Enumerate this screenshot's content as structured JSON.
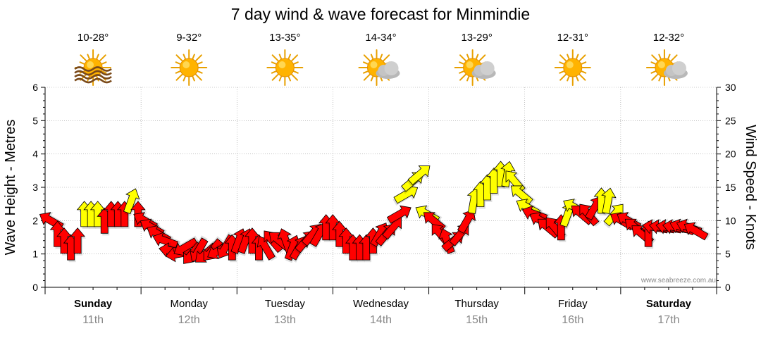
{
  "chart_data": {
    "type": "line",
    "title": "7 day wind & wave forecast for Minmindie",
    "ylabel_left": "Wave Height - Metres",
    "ylabel_right": "Wind Speed - Knots",
    "ylim_left": [
      0,
      6
    ],
    "ylim_right": [
      0,
      30
    ],
    "yticks_left": [
      "0",
      "1",
      "2",
      "3",
      "4",
      "5",
      "6"
    ],
    "yticks_right": [
      "0",
      "5",
      "10",
      "15",
      "20",
      "25",
      "30"
    ],
    "grid": true,
    "watermark": "www.seabreeze.com.au",
    "days": [
      {
        "name": "Sunday",
        "date": "11th",
        "temp": "10-28°",
        "icon": "sun-haze-icon",
        "bold": true
      },
      {
        "name": "Monday",
        "date": "12th",
        "temp": "9-32°",
        "icon": "sun-icon",
        "bold": false
      },
      {
        "name": "Tuesday",
        "date": "13th",
        "temp": "13-35°",
        "icon": "sun-icon",
        "bold": false
      },
      {
        "name": "Wednesday",
        "date": "14th",
        "temp": "14-34°",
        "icon": "sun-cloud-icon",
        "bold": false
      },
      {
        "name": "Thursday",
        "date": "15th",
        "temp": "13-29°",
        "icon": "sun-cloud-icon",
        "bold": false
      },
      {
        "name": "Friday",
        "date": "16th",
        "temp": "12-31°",
        "icon": "sun-icon",
        "bold": false
      },
      {
        "name": "Saturday",
        "date": "17th",
        "temp": "12-32°",
        "icon": "sun-cloud-icon",
        "bold": true
      }
    ],
    "colors": {
      "strong": "#ff0000",
      "moderate": "#ffff00",
      "outline": "#000000",
      "grid": "#999999"
    },
    "series": [
      {
        "name": "wind",
        "x_days": [
          0.0,
          0.07,
          0.14,
          0.21,
          0.28,
          0.35,
          0.42,
          0.49,
          0.56,
          0.63,
          0.7,
          0.77,
          0.84,
          0.91,
          0.98,
          1.05,
          1.12,
          1.19,
          1.26,
          1.33,
          1.4,
          1.47,
          1.54,
          1.61,
          1.68,
          1.75,
          1.82,
          1.89,
          1.96,
          2.03,
          2.1,
          2.17,
          2.24,
          2.31,
          2.38,
          2.45,
          2.52,
          2.59,
          2.66,
          2.73,
          2.8,
          2.87,
          2.94,
          3.01,
          3.08,
          3.15,
          3.22,
          3.29,
          3.36,
          3.43,
          3.5,
          3.57,
          3.64,
          3.71,
          3.78,
          3.85,
          3.92,
          3.99,
          4.06,
          4.13,
          4.2,
          4.27,
          4.34,
          4.41,
          4.48,
          4.55,
          4.62,
          4.69,
          4.76,
          4.83,
          4.9,
          4.97,
          5.04,
          5.11,
          5.18,
          5.25,
          5.32,
          5.39,
          5.46,
          5.53,
          5.6,
          5.67,
          5.74,
          5.81,
          5.88,
          5.95,
          6.02,
          6.09,
          6.16,
          6.23,
          6.3,
          6.37,
          6.44,
          6.51,
          6.58,
          6.65,
          6.72
        ],
        "knots": [
          10,
          8,
          7,
          6,
          7,
          11,
          11,
          11,
          10,
          11,
          11,
          11,
          13,
          11,
          10,
          9,
          8,
          7,
          5.5,
          5,
          6,
          5,
          5.5,
          5,
          5.5,
          5.5,
          6,
          6,
          7,
          7,
          7,
          6,
          6,
          7,
          7,
          7,
          6,
          6,
          7,
          8,
          8,
          9,
          9,
          8,
          7,
          6,
          6,
          6,
          7,
          8,
          8,
          9,
          11,
          14,
          16,
          17,
          11,
          10,
          8,
          7,
          7,
          8,
          10,
          13,
          14,
          15,
          16,
          17,
          17,
          16,
          14,
          12,
          11,
          10,
          9,
          9,
          9,
          11,
          12,
          11,
          11,
          12,
          13,
          13,
          11,
          10,
          10,
          9,
          8,
          8,
          9,
          9,
          9,
          9,
          9,
          9,
          8.5
        ],
        "strength": [
          "s",
          "s",
          "s",
          "s",
          "s",
          "m",
          "m",
          "m",
          "s",
          "s",
          "s",
          "s",
          "m",
          "s",
          "s",
          "s",
          "s",
          "s",
          "s",
          "s",
          "s",
          "s",
          "s",
          "s",
          "s",
          "s",
          "s",
          "s",
          "s",
          "s",
          "s",
          "s",
          "s",
          "s",
          "s",
          "s",
          "s",
          "s",
          "s",
          "s",
          "s",
          "s",
          "s",
          "s",
          "s",
          "s",
          "s",
          "s",
          "s",
          "s",
          "s",
          "s",
          "s",
          "m",
          "m",
          "m",
          "m",
          "s",
          "s",
          "s",
          "s",
          "s",
          "s",
          "m",
          "m",
          "m",
          "m",
          "m",
          "m",
          "m",
          "m",
          "m",
          "s",
          "s",
          "s",
          "s",
          "s",
          "m",
          "m",
          "s",
          "s",
          "s",
          "m",
          "m",
          "m",
          "s",
          "s",
          "s",
          "s",
          "s",
          "s",
          "s",
          "s",
          "s",
          "s",
          "s",
          "s"
        ],
        "dir_deg": [
          300,
          0,
          0,
          0,
          0,
          0,
          0,
          0,
          0,
          0,
          0,
          0,
          20,
          0,
          300,
          300,
          300,
          290,
          280,
          260,
          240,
          220,
          210,
          230,
          220,
          240,
          210,
          0,
          20,
          20,
          0,
          0,
          330,
          320,
          310,
          340,
          20,
          30,
          40,
          40,
          30,
          0,
          0,
          0,
          0,
          0,
          0,
          0,
          0,
          30,
          40,
          40,
          60,
          60,
          50,
          50,
          300,
          310,
          320,
          340,
          50,
          40,
          30,
          10,
          0,
          0,
          0,
          0,
          10,
          320,
          310,
          300,
          290,
          300,
          310,
          320,
          0,
          20,
          300,
          310,
          320,
          30,
          0,
          10,
          40,
          300,
          300,
          310,
          310,
          0,
          280,
          280,
          280,
          280,
          290,
          290,
          300
        ]
      },
      {
        "name": "wave",
        "values": []
      }
    ]
  }
}
